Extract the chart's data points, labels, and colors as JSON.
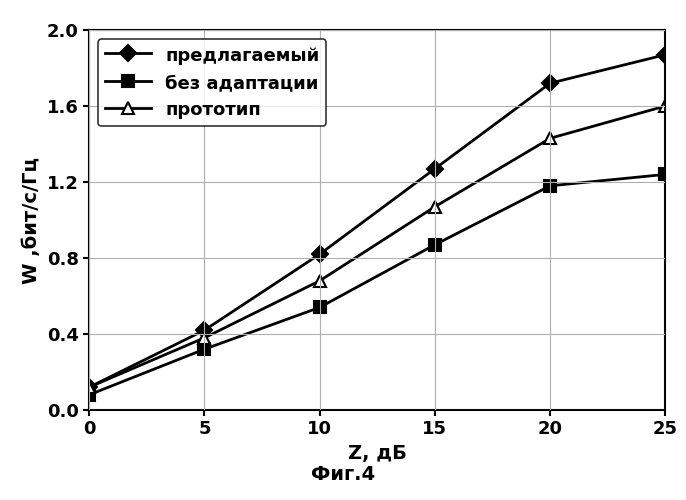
{
  "x": [
    0,
    5,
    10,
    15,
    20,
    25
  ],
  "series": [
    {
      "label": "предлагаемый",
      "y": [
        0.12,
        0.42,
        0.82,
        1.27,
        1.72,
        1.87
      ],
      "marker": "D",
      "color": "#000000",
      "linestyle": "-",
      "linewidth": 2.0,
      "markersize": 8,
      "markerfacecolor": "#000000"
    },
    {
      "label": "без адаптации",
      "y": [
        0.08,
        0.32,
        0.54,
        0.87,
        1.18,
        1.24
      ],
      "marker": "s",
      "color": "#000000",
      "linestyle": "-",
      "linewidth": 2.0,
      "markersize": 8,
      "markerfacecolor": "#000000"
    },
    {
      "label": "прототип",
      "y": [
        0.12,
        0.38,
        0.68,
        1.07,
        1.43,
        1.6
      ],
      "marker": "^",
      "color": "#000000",
      "linestyle": "-",
      "linewidth": 2.0,
      "markersize": 9,
      "markerfacecolor": "#ffffff"
    }
  ],
  "xlabel": "Z, дБ",
  "ylabel": "W ,бит/с/Гц",
  "xlim": [
    0,
    25
  ],
  "ylim": [
    0,
    2.0
  ],
  "xticks": [
    0,
    5,
    10,
    15,
    20,
    25
  ],
  "yticks": [
    0,
    0.4,
    0.8,
    1.2,
    1.6,
    2.0
  ],
  "caption": "Фиг.4",
  "grid": true,
  "legend_loc": "upper left",
  "label_fontsize": 14,
  "tick_fontsize": 13,
  "legend_fontsize": 13,
  "caption_fontsize": 14
}
